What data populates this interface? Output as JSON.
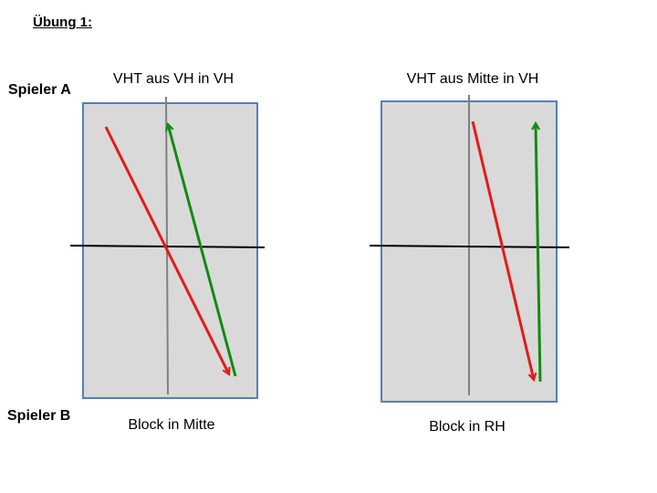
{
  "title": "Übung 1:",
  "players": {
    "a": "Spieler A",
    "b": "Spieler B"
  },
  "exercises": [
    {
      "top_label": "VHT aus VH in VH",
      "bottom_label": "Block in Mitte"
    },
    {
      "top_label": "VHT aus Mitte in VH",
      "bottom_label": "Block in RH"
    }
  ],
  "colors": {
    "table_fill": "#d9d9d9",
    "table_border": "#4f81bd",
    "center_line": "#808080",
    "net": "#000000",
    "stroke_a": "#e31b1b",
    "stroke_b": "#108c10"
  }
}
